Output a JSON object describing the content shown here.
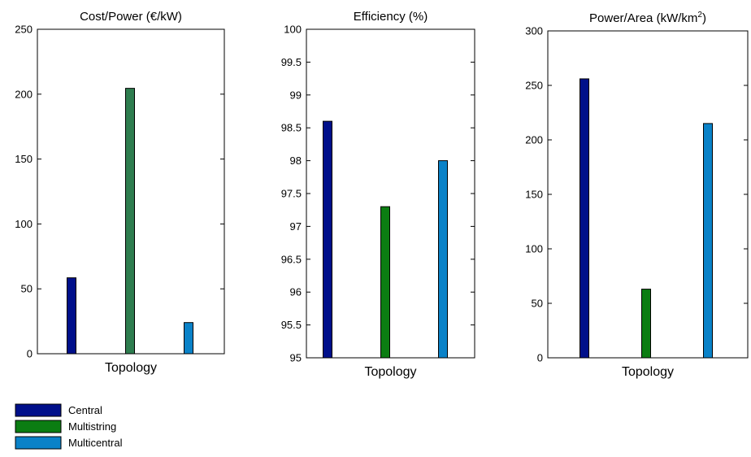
{
  "chart_data": [
    {
      "type": "bar",
      "title": "Cost/Power (€/kW)",
      "xlabel": "Topology",
      "ylabel": "",
      "ylim": [
        0,
        250
      ],
      "yticks": [
        0,
        50,
        100,
        150,
        200,
        250
      ],
      "categories": [
        "Central",
        "Multistring",
        "Multicentral"
      ],
      "values": [
        58.5,
        204.5,
        24
      ],
      "colors": [
        "#000f8a",
        "#2e7d4f",
        "#0a82c8"
      ],
      "grid": false
    },
    {
      "type": "bar",
      "title": "Efficiency (%)",
      "xlabel": "Topology",
      "ylabel": "",
      "ylim": [
        95,
        100
      ],
      "yticks": [
        95,
        95.5,
        96,
        96.5,
        97,
        97.5,
        98,
        98.5,
        99,
        99.5,
        100
      ],
      "categories": [
        "Central",
        "Multistring",
        "Multicentral"
      ],
      "values": [
        98.6,
        97.3,
        98.0
      ],
      "colors": [
        "#000f8a",
        "#0b7d12",
        "#0a82c8"
      ],
      "grid": false
    },
    {
      "type": "bar",
      "title": "Power/Area (kW/km",
      "title_sup": "2",
      "title_end": ")",
      "xlabel": "Topology",
      "ylabel": "",
      "ylim": [
        0,
        300
      ],
      "yticks": [
        0,
        50,
        100,
        150,
        200,
        250,
        300
      ],
      "categories": [
        "Central",
        "Multistring",
        "Multicentral"
      ],
      "values": [
        256,
        63,
        215
      ],
      "colors": [
        "#000f8a",
        "#0b7d12",
        "#0a82c8"
      ],
      "grid": false
    }
  ],
  "legend": {
    "placement": "bottom-left",
    "entries": [
      {
        "label": "Central",
        "color": "#000f8a"
      },
      {
        "label": "Multistring",
        "color": "#0b7d12"
      },
      {
        "label": "Multicentral",
        "color": "#0a82c8"
      }
    ]
  }
}
